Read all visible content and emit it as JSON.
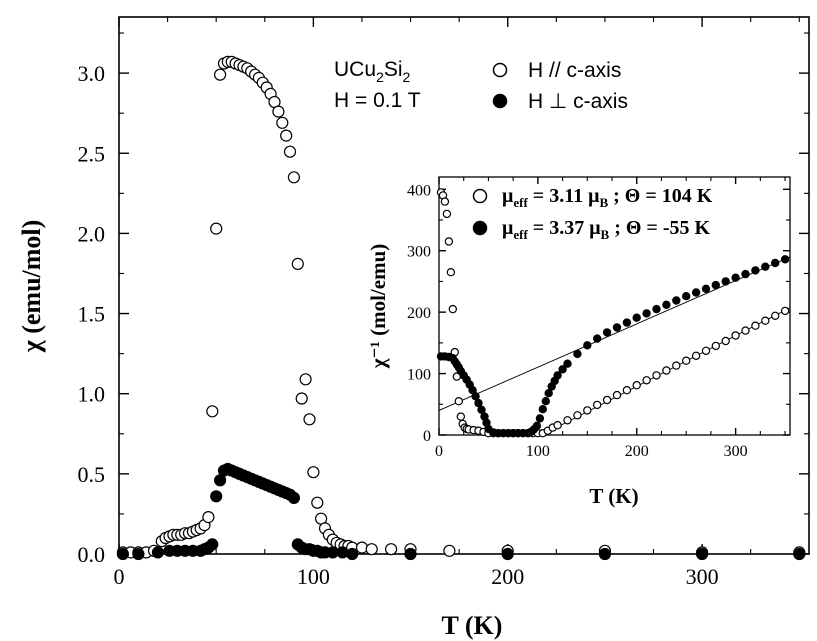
{
  "chart_data": [
    {
      "type": "scatter",
      "xlabel": "T (K)",
      "ylabel": "χ (emu/mol)",
      "xlim": [
        0,
        355
      ],
      "ylim": [
        0,
        3.35
      ],
      "xticks": [
        0,
        100,
        200,
        300
      ],
      "yticks": [
        0.0,
        0.5,
        1.0,
        1.5,
        2.0,
        2.5,
        3.0
      ],
      "ytick_labels": [
        "0.0",
        "0.5",
        "1.0",
        "1.5",
        "2.0",
        "2.5",
        "3.0"
      ],
      "grid": false,
      "annotation": {
        "compound": "UCu2Si2",
        "field": "H = 0.1 T"
      },
      "series": [
        {
          "name": "H // c-axis",
          "marker": "open-circle",
          "x": [
            2,
            6,
            10,
            14,
            18,
            22,
            24,
            26,
            28,
            30,
            32,
            34,
            36,
            38,
            40,
            42,
            44,
            46,
            48,
            50,
            52,
            54,
            56,
            58,
            60,
            62,
            64,
            66,
            68,
            70,
            72,
            74,
            76,
            78,
            80,
            82,
            84,
            86,
            88,
            90,
            92,
            94,
            96,
            98,
            100,
            102,
            104,
            106,
            108,
            110,
            112,
            114,
            116,
            118,
            120,
            125,
            130,
            140,
            150,
            170,
            200,
            250,
            300,
            350
          ],
          "y": [
            0.01,
            0.01,
            0.01,
            0.01,
            0.02,
            0.08,
            0.1,
            0.11,
            0.12,
            0.12,
            0.12,
            0.13,
            0.13,
            0.14,
            0.15,
            0.16,
            0.18,
            0.23,
            0.89,
            2.03,
            2.99,
            3.06,
            3.07,
            3.07,
            3.06,
            3.05,
            3.04,
            3.03,
            3.01,
            2.99,
            2.97,
            2.94,
            2.91,
            2.87,
            2.82,
            2.76,
            2.69,
            2.61,
            2.51,
            2.35,
            1.81,
            0.97,
            1.09,
            0.84,
            0.51,
            0.32,
            0.22,
            0.16,
            0.12,
            0.09,
            0.07,
            0.06,
            0.05,
            0.05,
            0.04,
            0.04,
            0.03,
            0.03,
            0.03,
            0.02,
            0.02,
            0.02,
            0.01,
            0.01
          ]
        },
        {
          "name": "H ⊥ c-axis",
          "marker": "filled-circle",
          "x": [
            2,
            10,
            20,
            26,
            30,
            34,
            38,
            42,
            44,
            46,
            48,
            50,
            52,
            54,
            56,
            58,
            60,
            62,
            64,
            66,
            68,
            70,
            72,
            74,
            76,
            78,
            80,
            82,
            84,
            86,
            88,
            90,
            92,
            94,
            96,
            98,
            100,
            102,
            104,
            106,
            110,
            115,
            120,
            150,
            200,
            250,
            300,
            350
          ],
          "y": [
            0.0,
            0.0,
            0.01,
            0.02,
            0.02,
            0.02,
            0.02,
            0.02,
            0.03,
            0.04,
            0.06,
            0.36,
            0.46,
            0.52,
            0.53,
            0.52,
            0.51,
            0.5,
            0.49,
            0.48,
            0.47,
            0.46,
            0.45,
            0.44,
            0.43,
            0.42,
            0.41,
            0.4,
            0.39,
            0.38,
            0.37,
            0.35,
            0.06,
            0.04,
            0.03,
            0.03,
            0.02,
            0.02,
            0.01,
            0.01,
            0.01,
            0.01,
            0.0,
            0.0,
            0.0,
            0.0,
            0.0,
            0.0
          ]
        }
      ]
    },
    {
      "type": "scatter",
      "role": "inset",
      "xlabel": "T (K)",
      "ylabel": "χ⁻¹ (mol/emu)",
      "xlim": [
        0,
        355
      ],
      "ylim": [
        0,
        420
      ],
      "xticks": [
        0,
        100,
        200,
        300
      ],
      "yticks": [
        0,
        100,
        200,
        300,
        400
      ],
      "grid": false,
      "series": [
        {
          "name": "μeff = 3.11 μB ; Θ = 104 K",
          "mu_eff": "3.11",
          "theta": "104 K",
          "marker": "open-circle",
          "x": [
            2,
            4,
            6,
            8,
            10,
            12,
            14,
            16,
            18,
            20,
            22,
            24,
            26,
            28,
            30,
            35,
            40,
            45,
            50,
            55,
            60,
            65,
            70,
            75,
            80,
            85,
            90,
            95,
            100,
            105,
            110,
            115,
            120,
            130,
            140,
            150,
            160,
            170,
            180,
            190,
            200,
            210,
            220,
            230,
            240,
            250,
            260,
            270,
            280,
            290,
            300,
            310,
            320,
            330,
            340,
            350
          ],
          "y": [
            395,
            390,
            380,
            360,
            315,
            265,
            205,
            135,
            95,
            55,
            30,
            18,
            12,
            10,
            9,
            8,
            7,
            5,
            3,
            3,
            3,
            3,
            3,
            3,
            3,
            3,
            3,
            3,
            3,
            3,
            7,
            12,
            16,
            24,
            32,
            40,
            49,
            57,
            65,
            73,
            81,
            89,
            97,
            105,
            113,
            121,
            129,
            137,
            145,
            153,
            162,
            170,
            178,
            186,
            194,
            202
          ]
        },
        {
          "name": "μeff = 3.37 μB ; Θ = -55 K",
          "mu_eff": "3.37",
          "theta": "-55 K",
          "marker": "filled-circle",
          "x": [
            2,
            6,
            10,
            14,
            16,
            18,
            20,
            22,
            25,
            28,
            31,
            34,
            37,
            40,
            43,
            46,
            48,
            50,
            55,
            60,
            65,
            70,
            75,
            80,
            85,
            90,
            93,
            96,
            99,
            102,
            105,
            108,
            111,
            114,
            117,
            120,
            125,
            130,
            140,
            150,
            160,
            170,
            180,
            190,
            200,
            210,
            220,
            230,
            240,
            250,
            260,
            270,
            280,
            290,
            300,
            310,
            320,
            330,
            340,
            350
          ],
          "y": [
            128,
            128,
            127,
            125,
            120,
            115,
            110,
            104,
            97,
            90,
            82,
            73,
            63,
            52,
            41,
            30,
            20,
            10,
            4,
            3,
            3,
            3,
            3,
            3,
            3,
            3,
            5,
            9,
            15,
            27,
            42,
            55,
            68,
            79,
            88,
            97,
            107,
            116,
            132,
            146,
            157,
            167,
            175,
            183,
            191,
            198,
            205,
            212,
            219,
            226,
            232,
            238,
            244,
            250,
            256,
            262,
            268,
            274,
            280,
            286
          ]
        }
      ],
      "fit_lines": [
        {
          "x": [
            0,
            355
          ],
          "y": [
            40,
            290
          ]
        },
        {
          "x": [
            104,
            355
          ],
          "y": [
            0,
            207
          ]
        }
      ]
    }
  ]
}
